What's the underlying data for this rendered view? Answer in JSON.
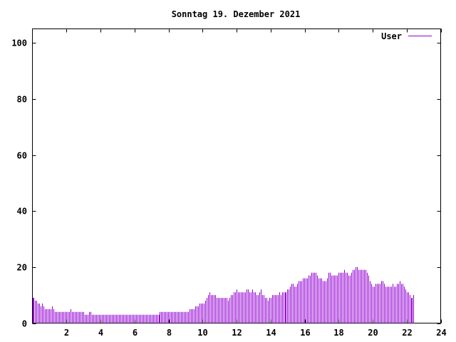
{
  "chart_data": {
    "type": "bar",
    "title": "Sonntag 19. Dezember 2021",
    "xlabel": "",
    "ylabel": "",
    "xlim": [
      0,
      24
    ],
    "ylim": [
      0,
      105
    ],
    "x_ticks": [
      2,
      4,
      6,
      8,
      10,
      12,
      14,
      16,
      18,
      20,
      22,
      24
    ],
    "x_tick_labels": [
      "2",
      "4",
      "6",
      "8",
      "10",
      "12",
      "14",
      "16",
      "18",
      "20",
      "22",
      "24"
    ],
    "y_ticks": [
      0,
      20,
      40,
      60,
      80,
      100
    ],
    "y_tick_labels": [
      "0",
      "20",
      "40",
      "60",
      "80",
      "100"
    ],
    "grid": false,
    "legend_position": "top-right",
    "series": [
      {
        "name": "User",
        "color": "#9400d3",
        "x_start": 0,
        "x_step": 0.0833,
        "values": [
          9,
          9,
          8,
          8,
          7,
          7,
          6,
          7,
          6,
          5,
          5,
          5,
          5,
          5,
          6,
          5,
          4,
          4,
          4,
          4,
          4,
          4,
          4,
          4,
          4,
          4,
          4,
          5,
          4,
          4,
          4,
          4,
          4,
          4,
          4,
          4,
          4,
          3,
          3,
          3,
          4,
          4,
          3,
          3,
          3,
          3,
          3,
          3,
          3,
          3,
          3,
          3,
          3,
          3,
          3,
          3,
          3,
          3,
          3,
          3,
          3,
          3,
          3,
          3,
          3,
          3,
          3,
          3,
          3,
          3,
          3,
          3,
          3,
          3,
          3,
          3,
          3,
          3,
          3,
          3,
          3,
          3,
          3,
          3,
          3,
          3,
          3,
          3,
          3,
          3,
          4,
          4,
          4,
          4,
          4,
          4,
          4,
          4,
          4,
          4,
          4,
          4,
          4,
          4,
          4,
          4,
          4,
          4,
          4,
          4,
          4,
          5,
          5,
          5,
          5,
          6,
          6,
          6,
          7,
          7,
          7,
          7,
          8,
          9,
          10,
          11,
          10,
          10,
          10,
          10,
          9,
          9,
          9,
          9,
          9,
          9,
          9,
          9,
          8,
          9,
          10,
          10,
          11,
          11,
          12,
          11,
          11,
          11,
          11,
          11,
          11,
          12,
          12,
          11,
          11,
          12,
          11,
          11,
          10,
          10,
          11,
          12,
          10,
          10,
          9,
          9,
          8,
          9,
          9,
          10,
          10,
          10,
          10,
          10,
          11,
          10,
          11,
          11,
          11,
          11,
          12,
          12,
          13,
          14,
          14,
          13,
          13,
          14,
          15,
          15,
          15,
          16,
          16,
          16,
          16,
          17,
          17,
          18,
          18,
          18,
          18,
          17,
          16,
          16,
          16,
          15,
          15,
          15,
          16,
          18,
          18,
          17,
          17,
          17,
          17,
          17,
          18,
          18,
          18,
          18,
          19,
          18,
          18,
          17,
          17,
          18,
          19,
          19,
          20,
          20,
          19,
          19,
          19,
          19,
          19,
          19,
          18,
          17,
          15,
          14,
          13,
          13,
          14,
          14,
          14,
          14,
          15,
          15,
          14,
          13,
          13,
          13,
          13,
          13,
          14,
          13,
          13,
          14,
          14,
          15,
          14,
          14,
          13,
          12,
          11,
          11,
          10,
          9,
          9,
          10
        ]
      }
    ]
  }
}
